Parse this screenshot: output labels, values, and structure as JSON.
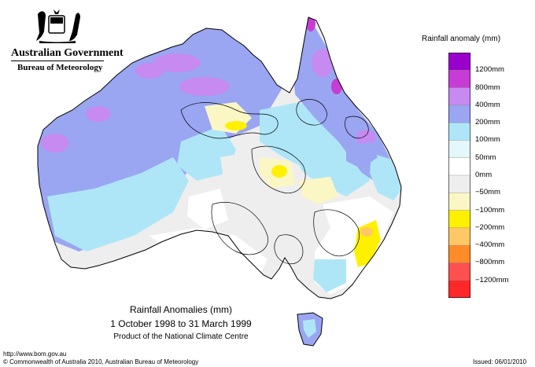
{
  "header": {
    "gov_name": "Australian Government",
    "bureau": "Bureau of Meteorology"
  },
  "legend": {
    "title": "Rainfall anomaly (mm)",
    "classes": [
      {
        "label": "1200mm",
        "color": "#9a00cc"
      },
      {
        "label": "800mm",
        "color": "#c83cd6"
      },
      {
        "label": "400mm",
        "color": "#c68af0"
      },
      {
        "label": "200mm",
        "color": "#9aa6f2"
      },
      {
        "label": "100mm",
        "color": "#aee6f8"
      },
      {
        "label": "50mm",
        "color": "#e4f7fb"
      },
      {
        "label": "0mm",
        "color": "#ffffff"
      },
      {
        "label": "−50mm",
        "color": "#eeeeee"
      },
      {
        "label": "−100mm",
        "color": "#fbf7c4"
      },
      {
        "label": "−200mm",
        "color": "#fff000"
      },
      {
        "label": "−400mm",
        "color": "#ffc864"
      },
      {
        "label": "−800mm",
        "color": "#ff8c28"
      },
      {
        "label": "−1200mm",
        "color": "#ff5050"
      }
    ],
    "extra_color": "#ff2828"
  },
  "caption": {
    "title": "Rainfall Anomalies (mm)",
    "period": "1 October 1998 to 31 March 1999",
    "product": "Product of the National Climate Centre"
  },
  "footer": {
    "url": "http://www.bom.gov.au",
    "copyright": "© Commonwealth of Australia 2010, Australian Bureau of Meteorology",
    "issued": "Issued: 06/01/2010"
  }
}
